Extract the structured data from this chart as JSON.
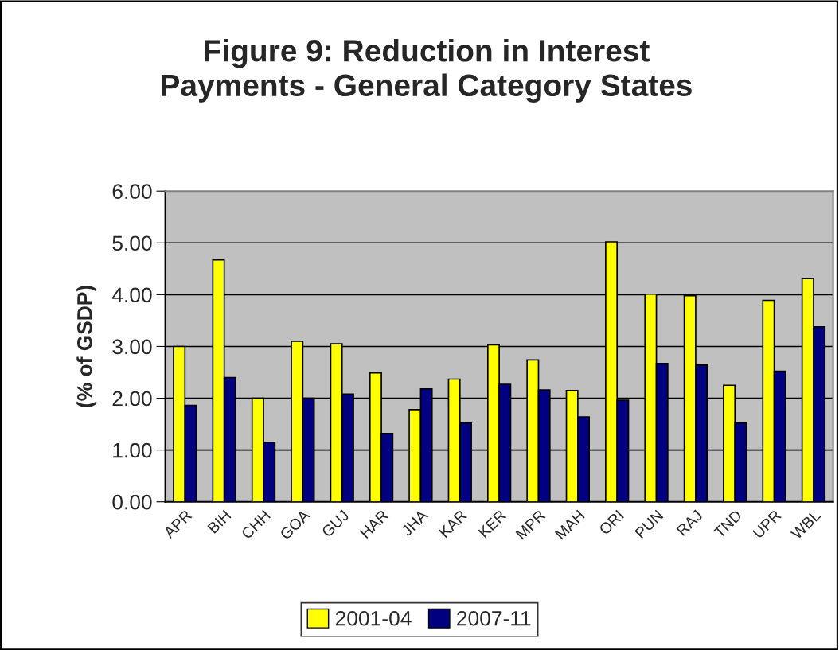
{
  "chart_data": {
    "type": "bar",
    "title": "Figure 9: Reduction in Interest\nPayments - General Category States",
    "ylabel": "(% of GSDP)",
    "categories": [
      "APR",
      "BIH",
      "CHH",
      "GOA",
      "GUJ",
      "HAR",
      "JHA",
      "KAR",
      "KER",
      "MPR",
      "MAH",
      "ORI",
      "PUN",
      "RAJ",
      "TND",
      "UPR",
      "WBL"
    ],
    "series": [
      {
        "name": "2001-04",
        "color": "#ffff00",
        "values": [
          3.0,
          4.67,
          2.0,
          3.1,
          3.05,
          2.49,
          1.78,
          2.37,
          3.03,
          2.74,
          2.15,
          5.02,
          4.01,
          3.98,
          2.25,
          3.89,
          4.31
        ]
      },
      {
        "name": "2007-11",
        "color": "#000080",
        "values": [
          1.86,
          2.4,
          1.15,
          2.0,
          2.08,
          1.32,
          2.18,
          1.52,
          2.27,
          2.16,
          1.64,
          1.96,
          2.67,
          2.64,
          1.52,
          2.52,
          3.38
        ]
      }
    ],
    "ylim": [
      0,
      6
    ],
    "yticks": [
      {
        "value": 0,
        "label": "0.00"
      },
      {
        "value": 1,
        "label": "1.00"
      },
      {
        "value": 2,
        "label": "2.00"
      },
      {
        "value": 3,
        "label": "3.00"
      },
      {
        "value": 4,
        "label": "4.00"
      },
      {
        "value": 5,
        "label": "5.00"
      },
      {
        "value": 6,
        "label": "6.00"
      }
    ],
    "grid": "y",
    "legend": "bottom"
  }
}
